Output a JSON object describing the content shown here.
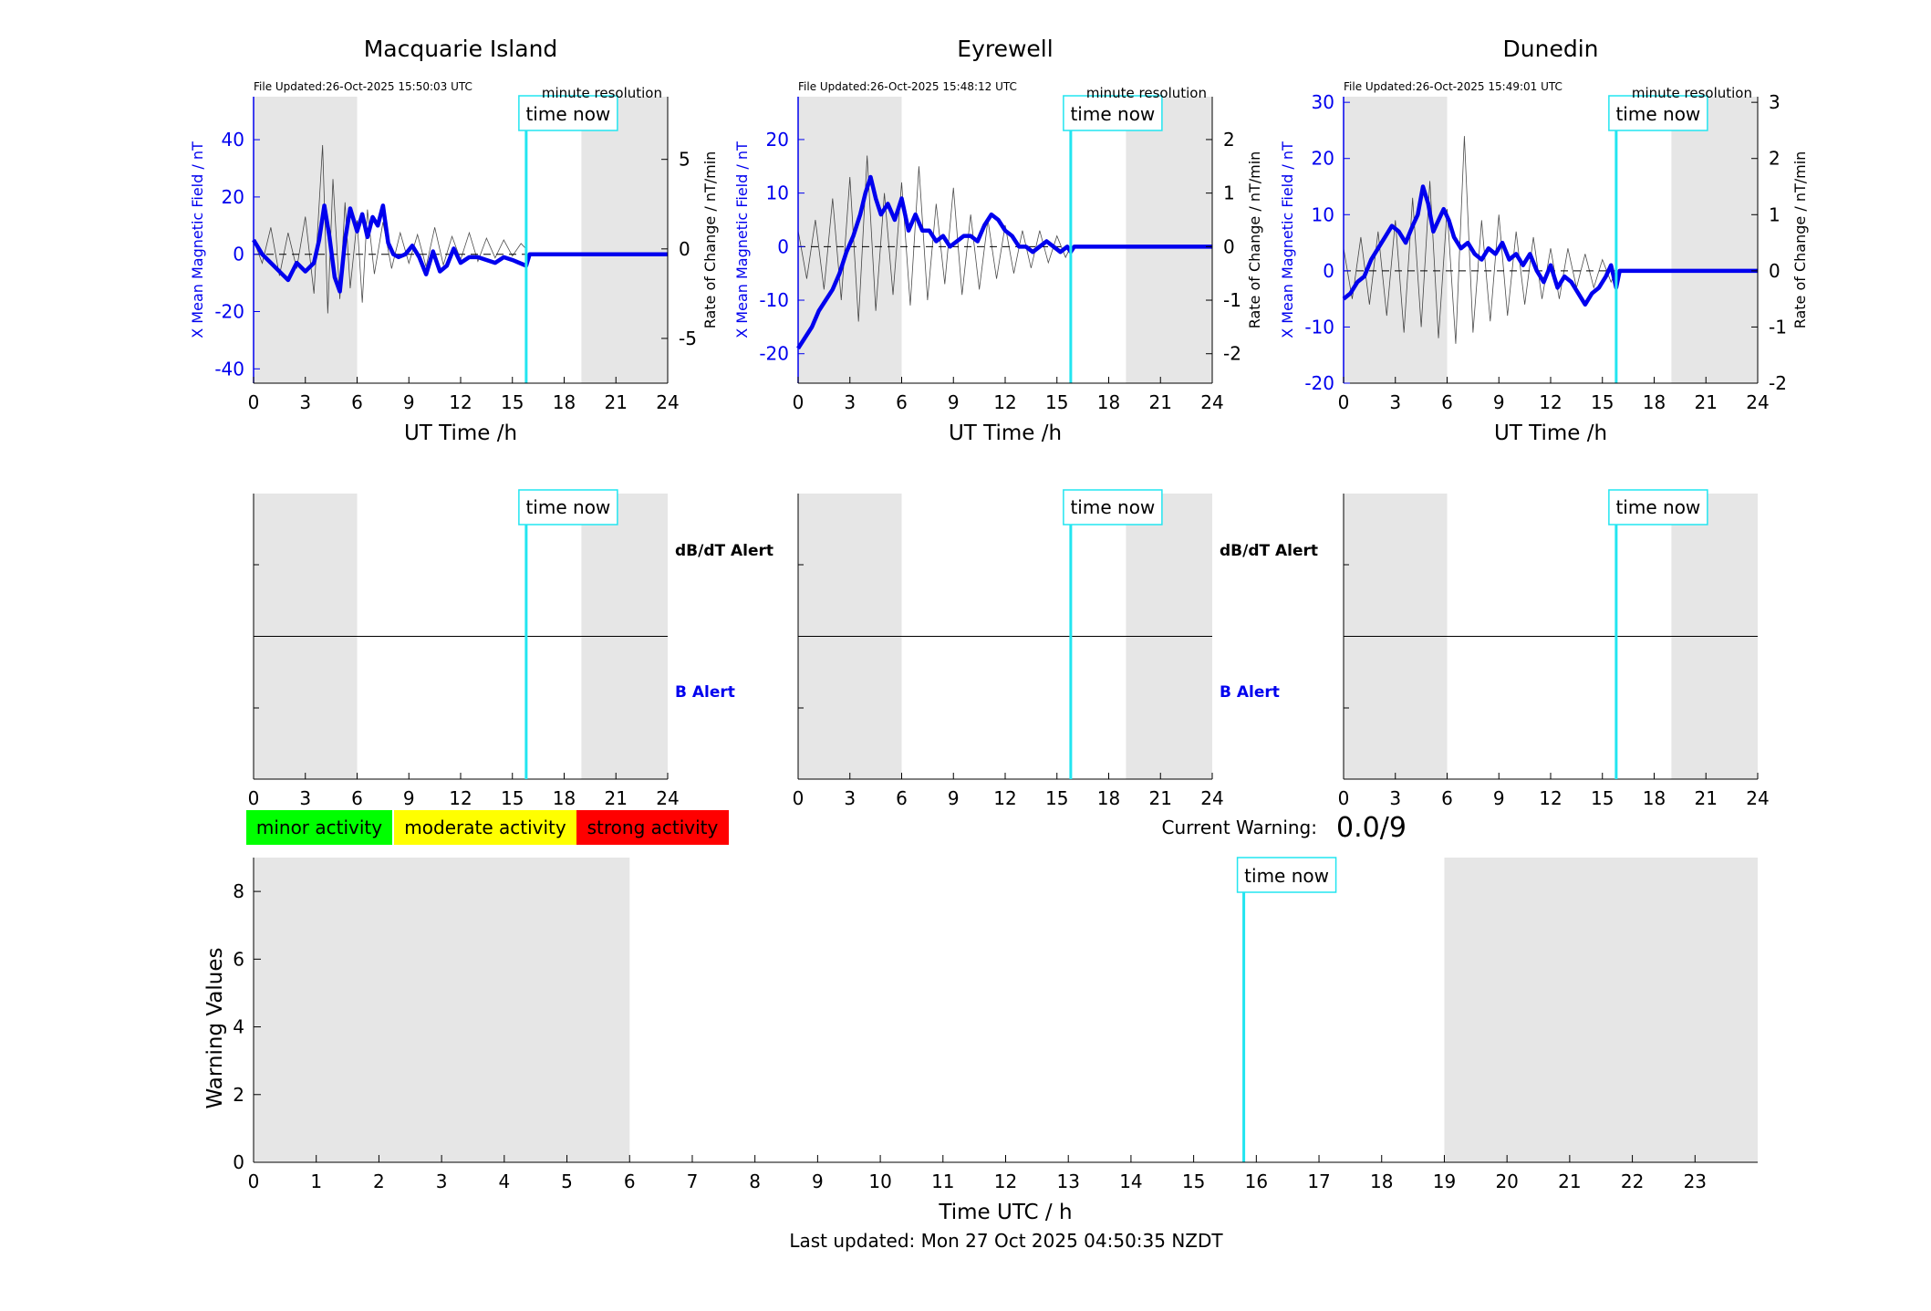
{
  "colors": {
    "b_field": "#0000ee",
    "rate": "#000000",
    "time_now": "#22e5f0",
    "night_shade": "#e6e6e6",
    "minor": "#00ff00",
    "moderate": "#ffff00",
    "strong": "#ff0000",
    "alert_b_label": "#0000ee"
  },
  "stations": [
    {
      "name": "Macquarie Island",
      "file_updated": "File Updated:26-Oct-2025 15:50:03 UTC",
      "resolution": "minute resolution",
      "ylabel_left": "X Mean Magnetic Field / nT",
      "ylabel_right": "Rate of Change / nT/min",
      "xlabel": "UT Time /h",
      "time_now_label": "time now",
      "alert_dbdt_label": "dB/dT Alert",
      "alert_b_label": "B Alert"
    },
    {
      "name": "Eyrewell",
      "file_updated": "File Updated:26-Oct-2025 15:48:12 UTC",
      "resolution": "minute resolution",
      "ylabel_left": "X Mean Magnetic Field / nT",
      "ylabel_right": "Rate of Change / nT/min",
      "xlabel": "UT Time /h",
      "time_now_label": "time now",
      "alert_dbdt_label": "dB/dT Alert",
      "alert_b_label": "B Alert"
    },
    {
      "name": "Dunedin",
      "file_updated": "File Updated:26-Oct-2025 15:49:01 UTC",
      "resolution": "minute resolution",
      "ylabel_left": "X Mean Magnetic Field / nT",
      "ylabel_right": "Rate of Change / nT/min",
      "xlabel": "UT Time /h",
      "time_now_label": "time now",
      "alert_dbdt_label": "dB/dT Alert",
      "alert_b_label": "B Alert"
    }
  ],
  "legend": {
    "minor": "minor activity",
    "moderate": "moderate activity",
    "strong": "strong activity"
  },
  "current_warning": {
    "label": "Current Warning:",
    "value": "0.0/9"
  },
  "warning_panel": {
    "ylabel": "Warning Values",
    "xlabel": "Time UTC / h",
    "time_now_label": "time now"
  },
  "footer": {
    "last_updated": "Last updated: Mon 27 Oct 2025 04:50:35 NZDT"
  },
  "chart_data": [
    {
      "type": "line",
      "station": "Macquarie Island",
      "xlim": [
        0,
        24
      ],
      "xticks": [
        0,
        3,
        6,
        9,
        12,
        15,
        18,
        21,
        24
      ],
      "ylim_left": [
        -45,
        55
      ],
      "yticks_left": [
        -40,
        -20,
        0,
        20,
        40
      ],
      "ylim_right": [
        -7.5,
        8.5
      ],
      "yticks_right": [
        -5,
        0,
        5
      ],
      "time_now": 15.8,
      "night_shading": [
        [
          0,
          6
        ],
        [
          19,
          24
        ]
      ],
      "series": [
        {
          "axis": "left",
          "x": [
            0,
            0.5,
            1,
            1.5,
            2,
            2.5,
            3,
            3.5,
            3.8,
            4.1,
            4.4,
            4.7,
            5,
            5.3,
            5.6,
            6,
            6.3,
            6.6,
            6.9,
            7.2,
            7.5,
            7.8,
            8.1,
            8.4,
            8.8,
            9.2,
            9.6,
            10,
            10.4,
            10.8,
            11.2,
            11.6,
            12,
            12.5,
            13,
            13.5,
            14,
            14.5,
            15,
            15.4,
            15.8,
            16,
            24
          ],
          "values": [
            5,
            0,
            -3,
            -6,
            -9,
            -3,
            -6,
            -3,
            5,
            17,
            6,
            -8,
            -13,
            5,
            16,
            8,
            14,
            6,
            13,
            10,
            17,
            4,
            0,
            -1,
            0,
            3,
            -1,
            -7,
            1,
            -6,
            -4,
            2,
            -3,
            -1,
            -1,
            -2,
            -3,
            -1,
            -2,
            -3,
            -4,
            0,
            0
          ]
        },
        {
          "axis": "right",
          "x": [
            0,
            0.5,
            1,
            1.5,
            2,
            2.5,
            3,
            3.5,
            4,
            4.3,
            4.6,
            5,
            5.3,
            5.6,
            6,
            6.3,
            6.6,
            7,
            7.5,
            8,
            8.5,
            9,
            9.5,
            10,
            10.5,
            11,
            11.5,
            12,
            12.5,
            13,
            13.5,
            14,
            14.5,
            15,
            15.5,
            15.8
          ],
          "values": [
            0.5,
            -0.8,
            1.2,
            -1.5,
            0.9,
            -1.1,
            1.8,
            -2.5,
            5.8,
            -3.6,
            3.9,
            -2.8,
            2.6,
            -2.2,
            1.6,
            -3,
            2.2,
            -1.4,
            1.5,
            -1.1,
            0.9,
            -0.8,
            0.8,
            -1,
            1.2,
            -0.9,
            0.7,
            -0.6,
            0.9,
            -0.7,
            0.6,
            -0.5,
            0.5,
            -0.4,
            0.3,
            0
          ]
        }
      ]
    },
    {
      "type": "line",
      "station": "Eyrewell",
      "xlim": [
        0,
        24
      ],
      "xticks": [
        0,
        3,
        6,
        9,
        12,
        15,
        18,
        21,
        24
      ],
      "ylim_left": [
        -25.5,
        28
      ],
      "yticks_left": [
        -20,
        -10,
        0,
        10,
        20
      ],
      "ylim_right": [
        -2.55,
        2.8
      ],
      "yticks_right": [
        -2,
        -1,
        0,
        1,
        2
      ],
      "time_now": 15.8,
      "night_shading": [
        [
          0,
          6
        ],
        [
          19,
          24
        ]
      ],
      "series": [
        {
          "axis": "left",
          "x": [
            0,
            0.4,
            0.8,
            1.2,
            1.6,
            2,
            2.4,
            2.8,
            3.2,
            3.6,
            3.9,
            4.2,
            4.5,
            4.8,
            5.2,
            5.6,
            6,
            6.4,
            6.8,
            7.2,
            7.6,
            8,
            8.4,
            8.8,
            9.2,
            9.6,
            10,
            10.4,
            10.8,
            11.2,
            11.6,
            12,
            12.4,
            12.8,
            13.2,
            13.6,
            14,
            14.4,
            14.8,
            15.2,
            15.6,
            15.8,
            16,
            24
          ],
          "values": [
            -19,
            -17,
            -15,
            -12,
            -10,
            -8,
            -5,
            -1,
            2,
            6,
            10,
            13,
            9,
            6,
            8,
            5,
            9,
            3,
            6,
            3,
            3,
            1,
            2,
            0,
            1,
            2,
            2,
            1,
            4,
            6,
            5,
            3,
            2,
            0,
            0,
            -1,
            0,
            1,
            0,
            -1,
            0,
            -1,
            0,
            0
          ]
        },
        {
          "axis": "right",
          "x": [
            0,
            0.5,
            1,
            1.5,
            2,
            2.5,
            3,
            3.5,
            4,
            4.5,
            5,
            5.5,
            6,
            6.5,
            7,
            7.5,
            8,
            8.5,
            9,
            9.5,
            10,
            10.5,
            11,
            11.5,
            12,
            12.5,
            13,
            13.5,
            14,
            14.5,
            15,
            15.5,
            15.8
          ],
          "values": [
            0.3,
            -0.6,
            0.5,
            -0.8,
            0.9,
            -1.0,
            1.3,
            -1.4,
            1.7,
            -1.2,
            1.0,
            -0.9,
            1.2,
            -1.1,
            1.5,
            -1.0,
            0.8,
            -0.7,
            1.1,
            -0.9,
            0.6,
            -0.8,
            0.5,
            -0.6,
            0.4,
            -0.5,
            0.3,
            -0.4,
            0.3,
            -0.3,
            0.2,
            -0.2,
            0
          ]
        }
      ]
    },
    {
      "type": "line",
      "station": "Dunedin",
      "xlim": [
        0,
        24
      ],
      "xticks": [
        0,
        3,
        6,
        9,
        12,
        15,
        18,
        21,
        24
      ],
      "ylim_left": [
        -20,
        31
      ],
      "yticks_left": [
        -20,
        -10,
        0,
        10,
        20,
        30
      ],
      "ylim_right": [
        -2,
        3.1
      ],
      "yticks_right": [
        -2,
        -1,
        0,
        1,
        2,
        3
      ],
      "time_now": 15.8,
      "night_shading": [
        [
          0,
          6
        ],
        [
          19,
          24
        ]
      ],
      "series": [
        {
          "axis": "left",
          "x": [
            0,
            0.4,
            0.8,
            1.2,
            1.6,
            2,
            2.4,
            2.8,
            3.2,
            3.6,
            4,
            4.3,
            4.6,
            4.9,
            5.2,
            5.5,
            5.8,
            6.1,
            6.4,
            6.8,
            7.2,
            7.6,
            8,
            8.4,
            8.8,
            9.2,
            9.6,
            10,
            10.4,
            10.8,
            11.2,
            11.6,
            12,
            12.4,
            12.8,
            13.2,
            13.6,
            14,
            14.4,
            14.8,
            15.2,
            15.5,
            15.8,
            16,
            24
          ],
          "values": [
            -5,
            -4,
            -2,
            -1,
            2,
            4,
            6,
            8,
            7,
            5,
            8,
            10,
            15,
            12,
            7,
            9,
            11,
            9,
            6,
            4,
            5,
            3,
            2,
            4,
            3,
            5,
            2,
            3,
            1,
            3,
            0,
            -2,
            1,
            -3,
            -1,
            -2,
            -4,
            -6,
            -4,
            -3,
            -1,
            1,
            -3,
            0,
            0
          ]
        },
        {
          "axis": "right",
          "x": [
            0,
            0.5,
            1,
            1.5,
            2,
            2.5,
            3,
            3.5,
            4,
            4.5,
            5,
            5.5,
            6,
            6.5,
            7,
            7.5,
            8,
            8.5,
            9,
            9.5,
            10,
            10.5,
            11,
            11.5,
            12,
            12.5,
            13,
            13.5,
            14,
            14.5,
            15,
            15.5,
            15.8
          ],
          "values": [
            0.4,
            -0.5,
            0.6,
            -0.6,
            0.7,
            -0.8,
            0.9,
            -1.1,
            1.3,
            -1.0,
            1.6,
            -1.2,
            1.1,
            -1.3,
            2.4,
            -1.1,
            0.9,
            -0.9,
            1.0,
            -0.8,
            0.7,
            -0.6,
            0.6,
            -0.5,
            0.4,
            -0.5,
            0.4,
            -0.3,
            0.3,
            -0.3,
            0.2,
            -0.2,
            0
          ]
        }
      ]
    },
    {
      "type": "line",
      "title": "Warning Values",
      "xlabel": "Time UTC / h",
      "ylabel": "Warning Values",
      "xlim": [
        0,
        24
      ],
      "xticks": [
        0,
        1,
        2,
        3,
        4,
        5,
        6,
        7,
        8,
        9,
        10,
        11,
        12,
        13,
        14,
        15,
        16,
        17,
        18,
        19,
        20,
        21,
        22,
        23
      ],
      "ylim": [
        0,
        9
      ],
      "yticks": [
        0,
        2,
        4,
        6,
        8
      ],
      "time_now": 15.8,
      "night_shading": [
        [
          0,
          6
        ],
        [
          19,
          24
        ]
      ],
      "series": []
    }
  ]
}
